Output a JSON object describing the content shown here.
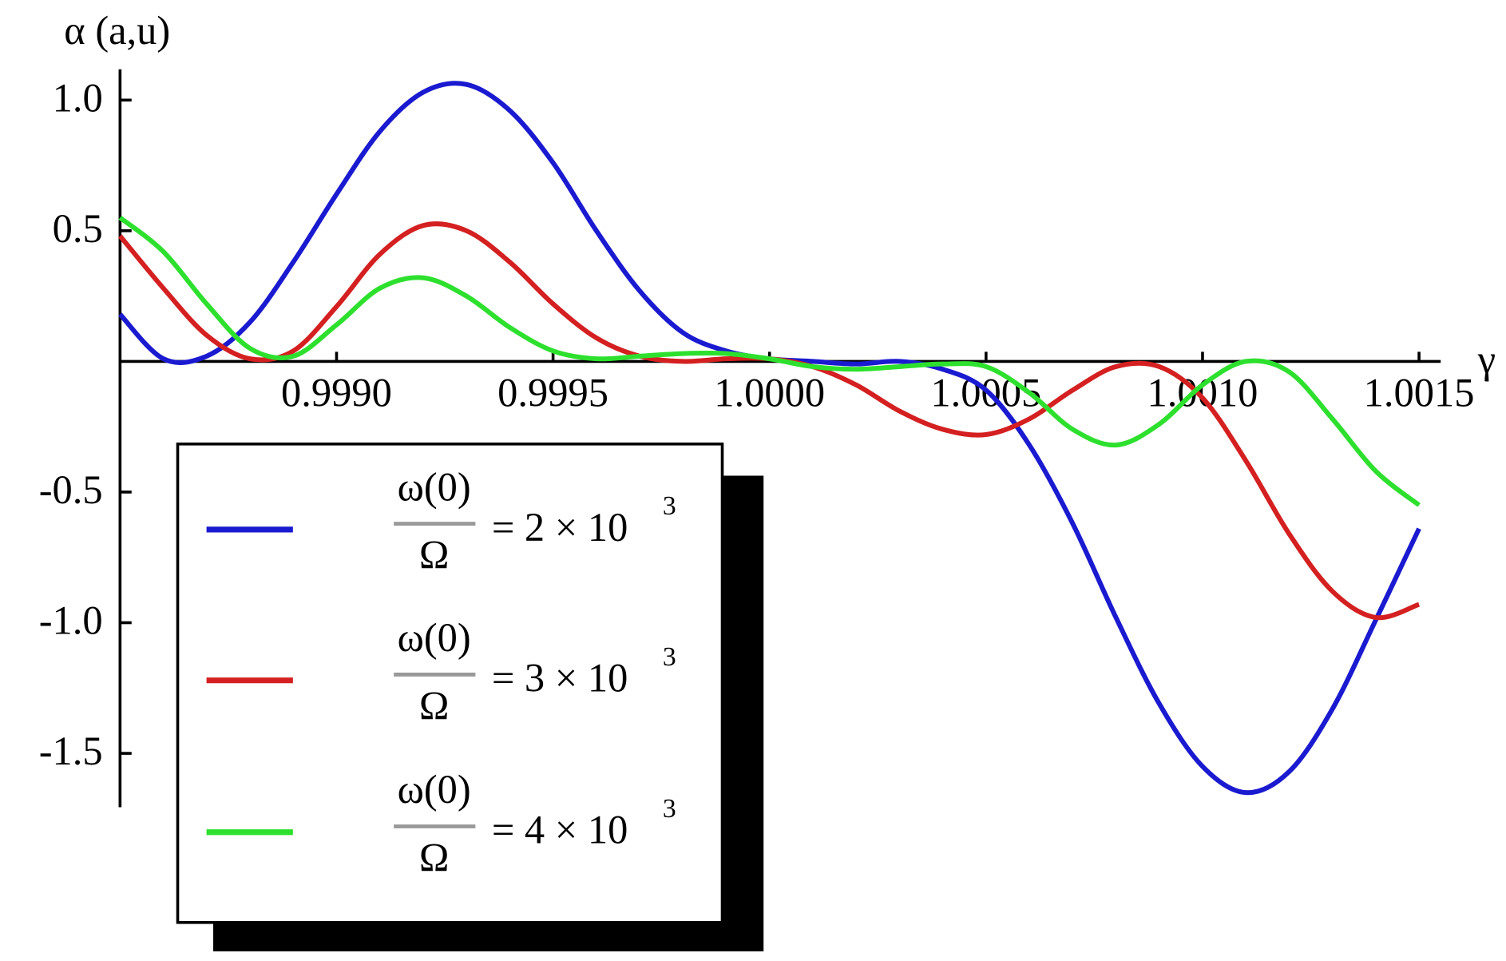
{
  "chart_data": {
    "type": "line",
    "y_label": "α (a,u)",
    "x_label": "γ",
    "x": [
      0.9985,
      0.9986,
      0.9987,
      0.9988,
      0.9989,
      0.999,
      0.9991,
      0.9992,
      0.9993,
      0.9994,
      0.9995,
      0.9996,
      0.9997,
      0.9998,
      0.9999,
      1.0,
      1.0001,
      1.0002,
      1.0003,
      1.0004,
      1.0005,
      1.0006,
      1.0007,
      1.0008,
      1.0009,
      1.001,
      1.0011,
      1.0012,
      1.0013,
      1.0014,
      1.0015
    ],
    "series": [
      {
        "name_numerator": "ω(0)",
        "name_denominator": "Ω",
        "name_value": "= 2 × 10",
        "name_exponent": "3",
        "color": "#1a1ad0",
        "values": [
          0.18,
          0.01,
          0.02,
          0.15,
          0.38,
          0.64,
          0.88,
          1.03,
          1.06,
          0.96,
          0.76,
          0.5,
          0.27,
          0.11,
          0.04,
          0.01,
          0.0,
          -0.01,
          0.0,
          -0.03,
          -0.11,
          -0.32,
          -0.62,
          -0.98,
          -1.31,
          -1.55,
          -1.65,
          -1.57,
          -1.33,
          -0.99,
          -0.64
        ]
      },
      {
        "name_numerator": "ω(0)",
        "name_denominator": "Ω",
        "name_value": "= 3 × 10",
        "name_exponent": "3",
        "color": "#d42020",
        "values": [
          0.48,
          0.28,
          0.1,
          0.01,
          0.04,
          0.21,
          0.41,
          0.52,
          0.5,
          0.38,
          0.22,
          0.09,
          0.02,
          0.0,
          0.01,
          0.01,
          -0.02,
          -0.09,
          -0.19,
          -0.26,
          -0.28,
          -0.22,
          -0.11,
          -0.02,
          -0.02,
          -0.14,
          -0.38,
          -0.66,
          -0.88,
          -0.98,
          -0.93
        ]
      },
      {
        "name_numerator": "ω(0)",
        "name_denominator": "Ω",
        "name_value": "= 4 × 10",
        "name_exponent": "3",
        "color": "#2ee02e",
        "values": [
          0.55,
          0.42,
          0.22,
          0.05,
          0.02,
          0.14,
          0.28,
          0.32,
          0.25,
          0.13,
          0.04,
          0.01,
          0.02,
          0.03,
          0.03,
          0.01,
          -0.02,
          -0.03,
          -0.02,
          -0.01,
          -0.02,
          -0.12,
          -0.26,
          -0.32,
          -0.24,
          -0.09,
          0.0,
          -0.04,
          -0.22,
          -0.42,
          -0.55
        ]
      }
    ],
    "xlim": [
      0.9985,
      1.00155
    ],
    "ylim": [
      -1.706,
      1.118
    ],
    "xticks": [
      {
        "value": 0.999,
        "label": "0.9990"
      },
      0.9995,
      {
        "value": 1,
        "label": "1.0000"
      },
      1.0005,
      {
        "value": 1.001,
        "label": "1.0010"
      },
      1.0015
    ],
    "yticks": [
      -1.5,
      {
        "value": -1,
        "label": "-1.0"
      },
      -0.5,
      0.5,
      {
        "value": 1,
        "label": "1.0"
      }
    ]
  }
}
